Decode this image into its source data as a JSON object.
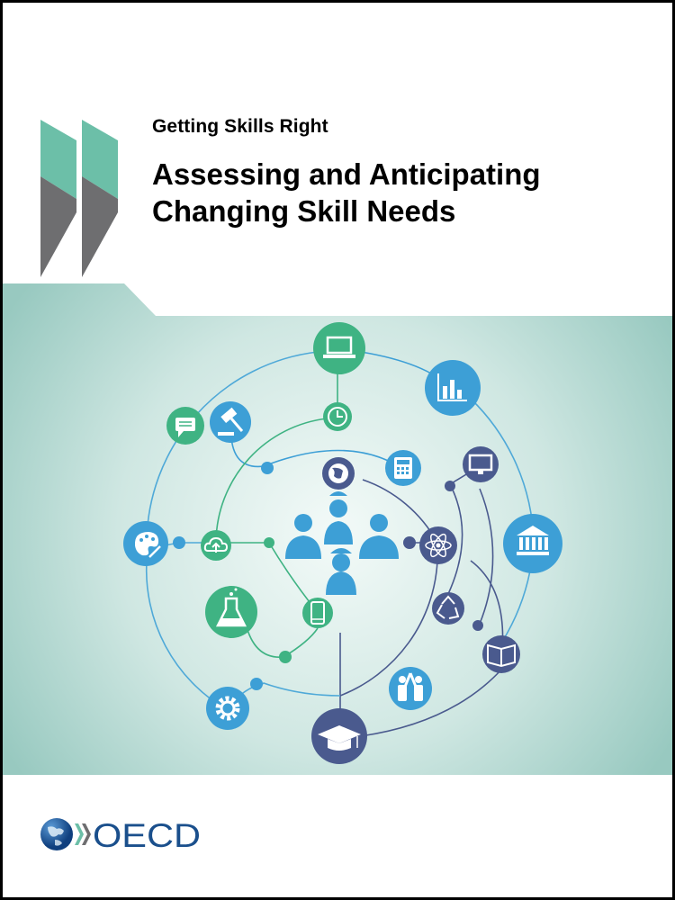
{
  "cover": {
    "series_title": "Getting Skills Right",
    "title_line1": "Assessing and Anticipating",
    "title_line2": "Changing Skill Needs",
    "publisher": "OECD"
  },
  "colors": {
    "chevron_teal": "#6cbfa8",
    "chevron_grey": "#6e6e70",
    "band_center": "#f3faf8",
    "band_edge": "#9fcdc5",
    "node_green": "#3fb383",
    "node_blue": "#3d9fd6",
    "node_navy": "#4a5a8e",
    "logo_blue": "#1a4f8c"
  },
  "illustration": {
    "icons": [
      "laptop-icon",
      "chat-icon",
      "gavel-icon",
      "clock-icon",
      "bar-chart-icon",
      "calculator-icon",
      "monitor-icon",
      "globe-icon",
      "palette-icon",
      "cloud-upload-icon",
      "people-icon",
      "atom-icon",
      "bank-icon",
      "flask-icon",
      "smartphone-icon",
      "recycle-icon",
      "book-icon",
      "gear-icon",
      "high-five-icon",
      "graduation-cap-icon"
    ]
  }
}
